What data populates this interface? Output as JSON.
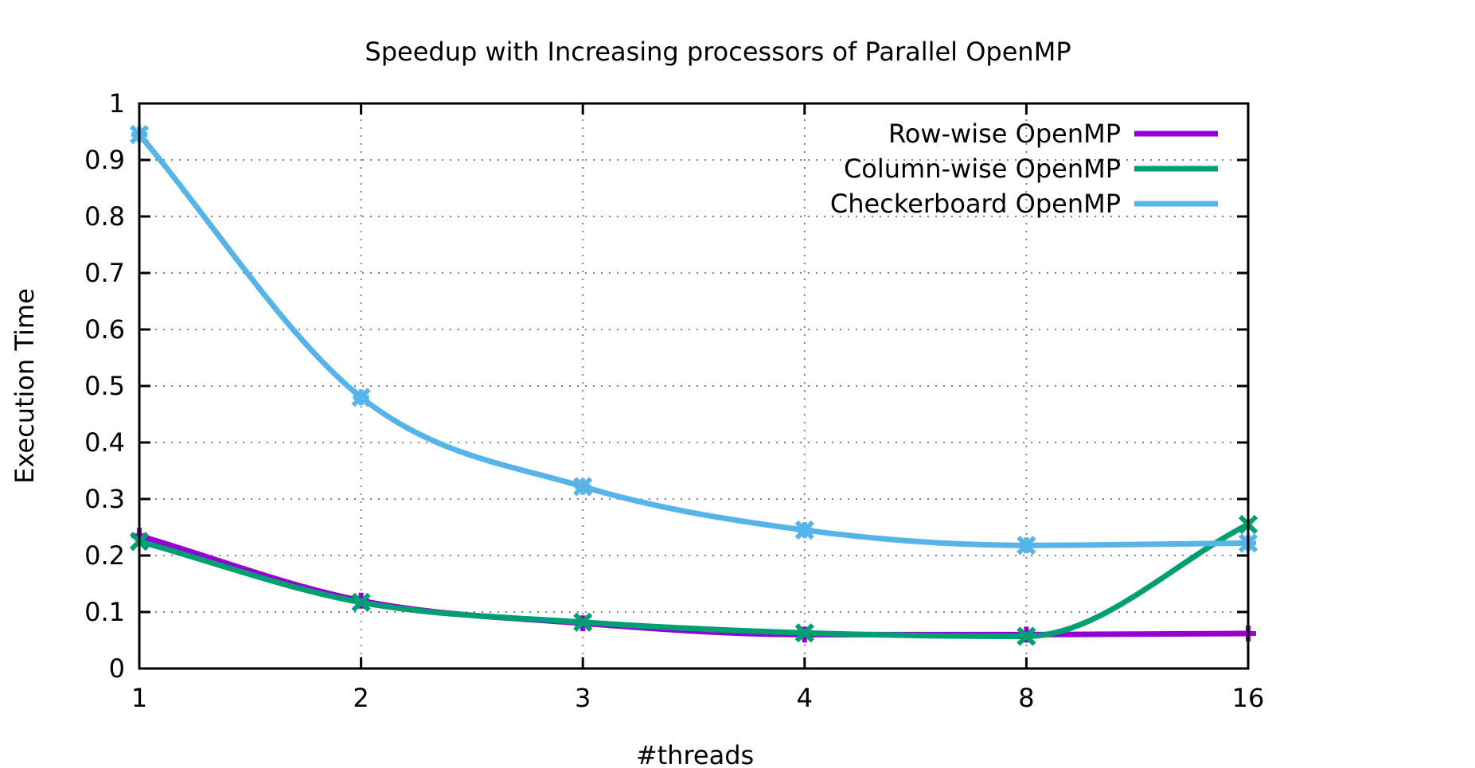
{
  "chart_data": {
    "type": "line",
    "title": "Speedup with Increasing processors of Parallel OpenMP",
    "xlabel": "#threads",
    "ylabel": "Execution Time",
    "categories": [
      "1",
      "2",
      "3",
      "4",
      "8",
      "16"
    ],
    "ylim": [
      0,
      1
    ],
    "yticks": [
      "0",
      "0.1",
      "0.2",
      "0.3",
      "0.4",
      "0.5",
      "0.6",
      "0.7",
      "0.8",
      "0.9",
      "1"
    ],
    "grid": true,
    "legend_position": "top-right",
    "series": [
      {
        "name": "Row-wise OpenMP",
        "color": "#9400d3",
        "marker": "plus",
        "values": [
          0.235,
          0.12,
          0.08,
          0.06,
          0.06,
          0.062
        ]
      },
      {
        "name": "Column-wise OpenMP",
        "color": "#009e73",
        "marker": "cross",
        "values": [
          0.225,
          0.117,
          0.082,
          0.063,
          0.057,
          0.255
        ]
      },
      {
        "name": "Checkerboard OpenMP",
        "color": "#56b4e9",
        "marker": "star",
        "values": [
          0.945,
          0.48,
          0.322,
          0.245,
          0.218,
          0.222
        ]
      }
    ]
  }
}
